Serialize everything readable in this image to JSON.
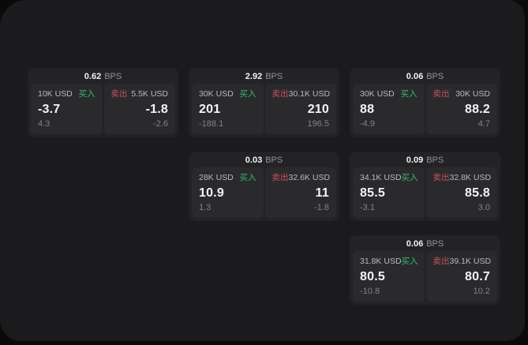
{
  "labels": {
    "bps_unit": "BPS",
    "buy": "买入",
    "sell": "卖出"
  },
  "colors": {
    "outer_bg": "#0a0a0b",
    "panel_bg": "#1b1b1d",
    "card_bg": "#232325",
    "inner_bg": "#2a2a2c",
    "buy_green": "#3cb878",
    "sell_red": "#c94f5f"
  },
  "cards": [
    {
      "row": 1,
      "col": 1,
      "bps": "0.62",
      "buy": {
        "amount": "10K USD",
        "value": "-3.7",
        "sub": "4.3"
      },
      "sell": {
        "amount": "5.5K USD",
        "value": "-1.8",
        "sub": "-2.6"
      }
    },
    {
      "row": 1,
      "col": 2,
      "bps": "2.92",
      "buy": {
        "amount": "30K USD",
        "value": "201",
        "sub": "-188.1"
      },
      "sell": {
        "amount": "30.1K USD",
        "value": "210",
        "sub": "196.5"
      }
    },
    {
      "row": 1,
      "col": 3,
      "bps": "0.06",
      "buy": {
        "amount": "30K USD",
        "value": "88",
        "sub": "-4.9"
      },
      "sell": {
        "amount": "30K USD",
        "value": "88.2",
        "sub": "4.7"
      }
    },
    {
      "row": 2,
      "col": 2,
      "bps": "0.03",
      "buy": {
        "amount": "28K USD",
        "value": "10.9",
        "sub": "1.3"
      },
      "sell": {
        "amount": "32.6K USD",
        "value": "11",
        "sub": "-1.8"
      }
    },
    {
      "row": 2,
      "col": 3,
      "bps": "0.09",
      "buy": {
        "amount": "34.1K USD",
        "value": "85.5",
        "sub": "-3.1"
      },
      "sell": {
        "amount": "32.8K USD",
        "value": "85.8",
        "sub": "3.0"
      }
    },
    {
      "row": 3,
      "col": 3,
      "bps": "0.06",
      "buy": {
        "amount": "31.8K USD",
        "value": "80.5",
        "sub": "-10.8"
      },
      "sell": {
        "amount": "39.1K USD",
        "value": "80.7",
        "sub": "10.2"
      }
    }
  ]
}
